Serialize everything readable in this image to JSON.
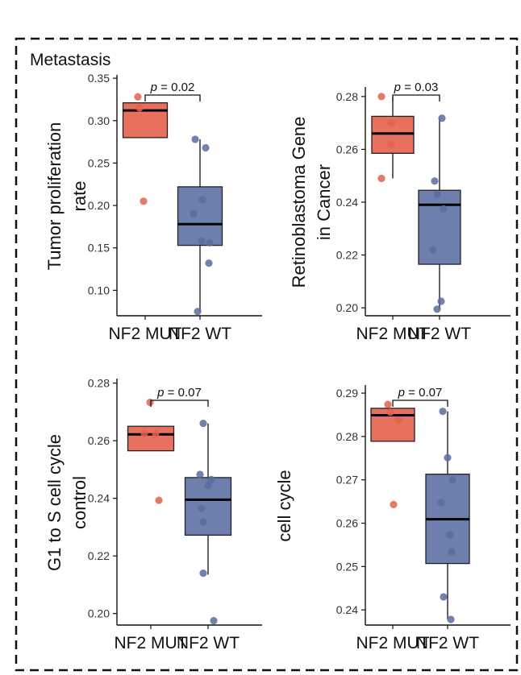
{
  "figure": {
    "title": "Metastasis"
  },
  "colors": {
    "mut": "#E8705F",
    "wt": "#6E7FAE",
    "mut_point": "#E26250",
    "wt_point": "#5A6C9E"
  },
  "chart_data": [
    {
      "type": "box",
      "ylabel": [
        "Tumor proliferation",
        "rate"
      ],
      "categories": [
        "NF2 MUT",
        "NF2 WT"
      ],
      "ylim": [
        0.07,
        0.352
      ],
      "yticks": [
        0.35,
        0.3,
        0.25,
        0.2,
        0.15,
        0.1
      ],
      "ytick_labels": [
        "0.35",
        "0.30",
        "0.25",
        "0.20",
        "0.15",
        "0.10"
      ],
      "pvalue": "p = 0.02",
      "groups": [
        {
          "name": "NF2 MUT",
          "q1": 0.28,
          "median": 0.312,
          "q3": 0.321,
          "whisker_low": 0.28,
          "whisker_high": 0.321,
          "points": [
            0.328,
            0.315,
            0.205
          ]
        },
        {
          "name": "NF2 WT",
          "q1": 0.153,
          "median": 0.178,
          "q3": 0.222,
          "whisker_low": 0.075,
          "whisker_high": 0.278,
          "points": [
            0.278,
            0.268,
            0.207,
            0.19,
            0.158,
            0.156,
            0.132,
            0.075
          ]
        }
      ]
    },
    {
      "type": "box",
      "ylabel": [
        "Retinoblastoma Gene",
        "in Cancer"
      ],
      "categories": [
        "NF2 MUT",
        "NF2 WT"
      ],
      "ylim": [
        0.197,
        0.283
      ],
      "yticks": [
        0.28,
        0.26,
        0.24,
        0.22,
        0.2
      ],
      "ytick_labels": [
        "0.28",
        "0.26",
        "0.24",
        "0.22",
        "0.20"
      ],
      "pvalue": "p = 0.03",
      "groups": [
        {
          "name": "NF2 MUT",
          "q1": 0.2585,
          "median": 0.266,
          "q3": 0.2725,
          "whisker_low": 0.249,
          "whisker_high": 0.28,
          "points": [
            0.28,
            0.27,
            0.262,
            0.249
          ]
        },
        {
          "name": "NF2 WT",
          "q1": 0.2165,
          "median": 0.239,
          "q3": 0.2445,
          "whisker_low": 0.1995,
          "whisker_high": 0.2718,
          "points": [
            0.2718,
            0.248,
            0.243,
            0.2375,
            0.222,
            0.2025,
            0.1995
          ]
        }
      ]
    },
    {
      "type": "box",
      "ylabel": [
        "G1 to S cell cycle",
        "control"
      ],
      "categories": [
        "NF2 MUT",
        "NF2 WT"
      ],
      "ylim": [
        0.196,
        0.281
      ],
      "yticks": [
        0.28,
        0.26,
        0.24,
        0.22,
        0.2
      ],
      "ytick_labels": [
        "0.28",
        "0.26",
        "0.24",
        "0.22",
        "0.20"
      ],
      "pvalue": "p = 0.07",
      "groups": [
        {
          "name": "NF2 MUT",
          "q1": 0.2565,
          "median": 0.2622,
          "q3": 0.265,
          "whisker_low": 0.2565,
          "whisker_high": 0.265,
          "points": [
            0.2733,
            0.2625,
            0.2623,
            0.2393
          ]
        },
        {
          "name": "NF2 WT",
          "q1": 0.2272,
          "median": 0.2395,
          "q3": 0.2472,
          "whisker_low": 0.2135,
          "whisker_high": 0.266,
          "points": [
            0.266,
            0.2483,
            0.2465,
            0.2445,
            0.2365,
            0.2318,
            0.214,
            0.1975
          ]
        }
      ]
    },
    {
      "type": "box",
      "ylabel": [
        "cell cycle"
      ],
      "categories": [
        "NF2 MUT",
        "NF2 WT"
      ],
      "ylim": [
        0.2365,
        0.2915
      ],
      "yticks": [
        0.29,
        0.28,
        0.27,
        0.26,
        0.25,
        0.24
      ],
      "ytick_labels": [
        "0.29",
        "0.28",
        "0.27",
        "0.26",
        "0.25",
        "0.24"
      ],
      "pvalue": "p = 0.07",
      "groups": [
        {
          "name": "NF2 MUT",
          "q1": 0.2789,
          "median": 0.2849,
          "q3": 0.2865,
          "whisker_low": 0.2789,
          "whisker_high": 0.2865,
          "points": [
            0.2874,
            0.2856,
            0.2838,
            0.2643
          ]
        },
        {
          "name": "NF2 WT",
          "q1": 0.2507,
          "median": 0.2609,
          "q3": 0.2713,
          "whisker_low": 0.2378,
          "whisker_high": 0.2858,
          "points": [
            0.2858,
            0.2751,
            0.27,
            0.2648,
            0.2573,
            0.2534,
            0.243,
            0.2378
          ]
        }
      ]
    }
  ]
}
